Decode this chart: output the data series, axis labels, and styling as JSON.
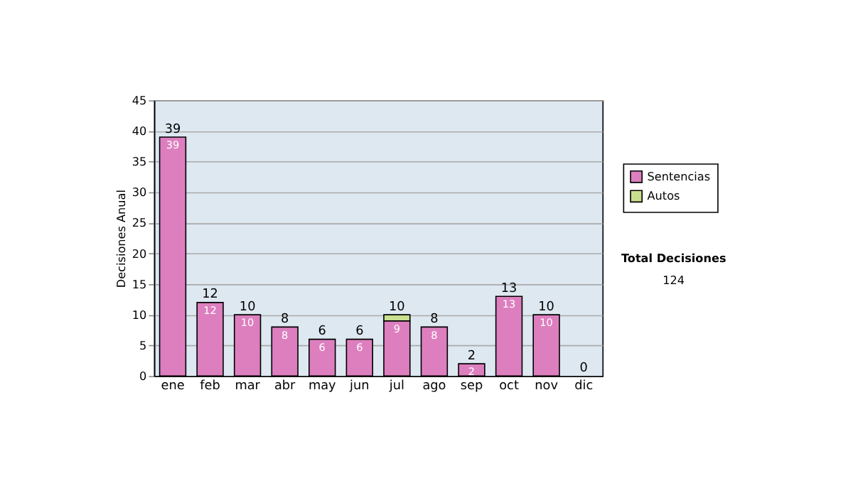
{
  "chart_data": {
    "type": "bar",
    "stacked": true,
    "ylabel": "Decisiones Anual",
    "categories": [
      "ene",
      "feb",
      "mar",
      "abr",
      "may",
      "jun",
      "jul",
      "ago",
      "sep",
      "oct",
      "nov",
      "dic"
    ],
    "series": [
      {
        "name": "Sentencias",
        "color": "#dd7fbf",
        "values": [
          39,
          12,
          10,
          8,
          6,
          6,
          9,
          8,
          2,
          13,
          10,
          0
        ],
        "value_labels": [
          "39",
          "12",
          "10",
          "8",
          "6",
          "6",
          "9",
          "8",
          "2",
          "13",
          "10",
          null
        ]
      },
      {
        "name": "Autos",
        "color": "#c9df8e",
        "values": [
          0,
          0,
          0,
          0,
          0,
          0,
          1,
          0,
          0,
          0,
          0,
          0
        ]
      }
    ],
    "totals": [
      "39",
      "12",
      "10",
      "8",
      "6",
      "6",
      "10",
      "8",
      "2",
      "13",
      "10",
      "0"
    ],
    "ylim": [
      0,
      45
    ],
    "yticks": [
      0,
      5,
      10,
      15,
      20,
      25,
      30,
      35,
      40,
      45
    ],
    "grid": "y",
    "legend": "right",
    "annotations": [
      "Total Decisiones",
      "124"
    ]
  }
}
